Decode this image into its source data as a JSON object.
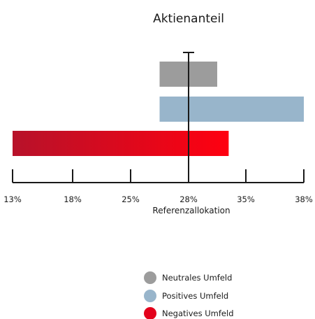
{
  "chart_data": {
    "type": "bar",
    "orientation": "horizontal",
    "title": "Aktienanteil",
    "xlabel": "Referenzallokation",
    "ylabel": "",
    "reference_line": "28%",
    "x_ticks": [
      "13%",
      "18%",
      "25%",
      "28%",
      "35%",
      "38%"
    ],
    "series": [
      {
        "name": "Neutrales Umfeld",
        "from_tick": 2.5,
        "to_tick": 3.5,
        "color": "#9c9c9c"
      },
      {
        "name": "Positives Umfeld",
        "from_tick": 2.5,
        "to_tick": 5.0,
        "color": "#98b5cb"
      },
      {
        "name": "Negatives Umfeld",
        "from_tick": 0.0,
        "to_tick": 3.7,
        "color_start": "#b7122a",
        "color_end": "#ff0010"
      }
    ],
    "legend": [
      {
        "label": "Neutrales Umfeld",
        "color": "#9c9c9c"
      },
      {
        "label": "Positives Umfeld",
        "color": "#98b5cb"
      },
      {
        "label": "Negatives Umfeld",
        "color": "#e3001b"
      }
    ],
    "legend_position": "bottom"
  }
}
